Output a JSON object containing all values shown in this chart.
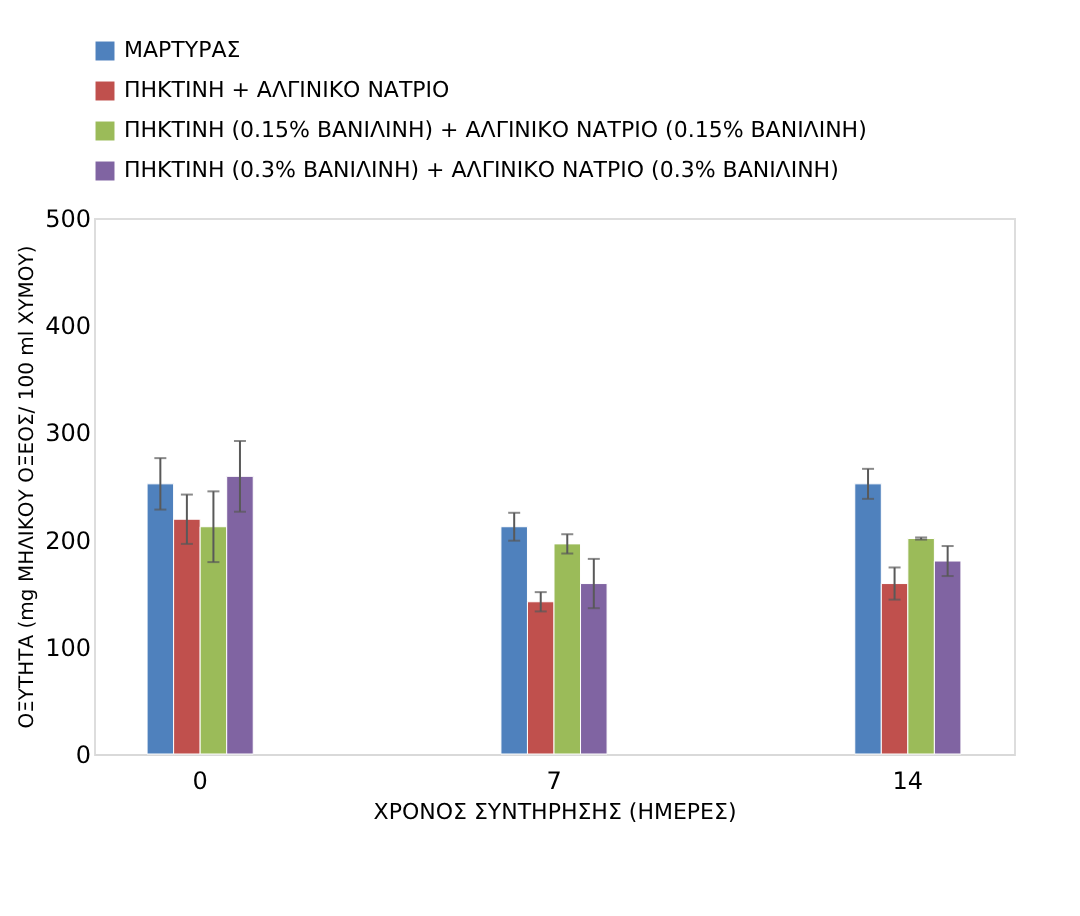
{
  "chart_data": {
    "type": "bar",
    "xlabel": "ΧΡΟΝΟΣ ΣΥΝΤΗΡΗΣΗΣ (ΗΜΕΡΕΣ)",
    "ylabel": "ΟΞΥΤΗΤΑ (mg  ΜΗΛΙΚΟΥ ΟΞΕΟΣ/ 100 ml ΧΥΜΟΥ)",
    "categories": [
      "0",
      "7",
      "14"
    ],
    "series": [
      {
        "name": "ΜΑΡΤΥΡΑΣ",
        "color": "#4f81bd",
        "values": [
          252,
          212,
          252
        ],
        "errors": [
          24,
          13,
          14
        ]
      },
      {
        "name": "ΠΗΚΤΙΝΗ + ΑΛΓΙΝΙΚΟ ΝΑΤΡΙΟ",
        "color": "#c0504d",
        "values": [
          219,
          142,
          159
        ],
        "errors": [
          23,
          9,
          15
        ]
      },
      {
        "name": "ΠΗΚΤΙΝΗ (0.15% ΒΑΝΙΛΙΝΗ) + ΑΛΓΙΝΙΚΟ ΝΑΤΡΙΟ (0.15% ΒΑΝΙΛΙΝΗ)",
        "color": "#9bbb59",
        "values": [
          212,
          196,
          201
        ],
        "errors": [
          33,
          9,
          1
        ]
      },
      {
        "name": "ΠΗΚΤΙΝΗ (0.3% ΒΑΝΙΛΙΝΗ) + ΑΛΓΙΝΙΚΟ ΝΑΤΡΙΟ (0.3% ΒΑΝΙΛΙΝΗ)",
        "color": "#8064a2",
        "values": [
          259,
          159,
          180
        ],
        "errors": [
          33,
          23,
          14
        ]
      }
    ],
    "ylim": [
      0,
      500
    ],
    "yticks": [
      0,
      100,
      200,
      300,
      400,
      500
    ],
    "grid": false,
    "legend": "top"
  }
}
